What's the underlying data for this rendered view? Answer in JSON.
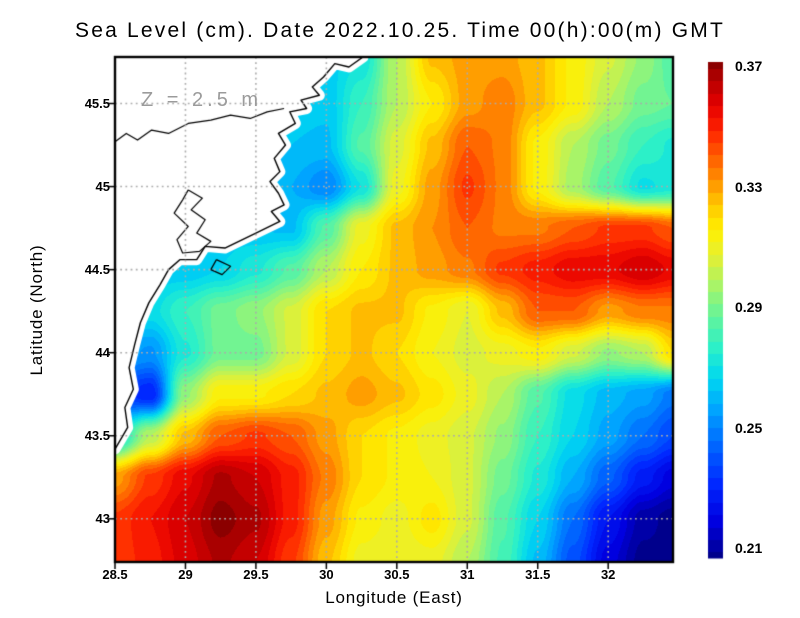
{
  "chart_data": {
    "type": "heatmap",
    "title": "Sea Level (cm). Date 2022.10.25. Time 00(h):00(m) GMT",
    "xlabel": "Longitude (East)",
    "ylabel": "Latitude (North)",
    "annotation": "Z = 2.5 m",
    "annotation_color": "#9b9b9b",
    "lon_range": [
      28.5,
      32.46
    ],
    "lat_range": [
      42.74,
      45.78
    ],
    "x_ticks": [
      "28.5",
      "29",
      "29.5",
      "30",
      "30.5",
      "31",
      "31.5",
      "32"
    ],
    "x_tick_values": [
      28.5,
      29,
      29.5,
      30,
      30.5,
      31,
      31.5,
      32
    ],
    "y_ticks": [
      "45.5",
      "45",
      "44.5",
      "44",
      "43.5",
      "43"
    ],
    "y_tick_values": [
      45.5,
      45,
      44.5,
      44,
      43.5,
      43
    ],
    "grid": {
      "style": "dotted",
      "color": "#ababab",
      "lon_lines": [
        29,
        29.5,
        30,
        30.5,
        31,
        31.5,
        32
      ],
      "lat_lines": [
        43,
        43.5,
        44,
        44.5,
        45,
        45.5
      ]
    },
    "colorbar": {
      "min": 0.21,
      "max": 0.37,
      "tick_labels": [
        "0.37",
        "0.33",
        "0.29",
        "0.25",
        "0.21"
      ],
      "tick_values": [
        0.37,
        0.33,
        0.29,
        0.25,
        0.21
      ]
    },
    "colormap": [
      [
        0.21,
        "#00008c"
      ],
      [
        0.222,
        "#0000e0"
      ],
      [
        0.234,
        "#0028ff"
      ],
      [
        0.246,
        "#0064ff"
      ],
      [
        0.258,
        "#00a4ff"
      ],
      [
        0.268,
        "#00d8f0"
      ],
      [
        0.278,
        "#2cf0c8"
      ],
      [
        0.288,
        "#64f49c"
      ],
      [
        0.298,
        "#a8f468"
      ],
      [
        0.308,
        "#e8f030"
      ],
      [
        0.316,
        "#fff000"
      ],
      [
        0.324,
        "#ffc800"
      ],
      [
        0.332,
        "#ff9000"
      ],
      [
        0.34,
        "#ff5a00"
      ],
      [
        0.348,
        "#ff2400"
      ],
      [
        0.356,
        "#e60000"
      ],
      [
        0.364,
        "#b80000"
      ],
      [
        0.37,
        "#8b0000"
      ]
    ],
    "grid_lons": [
      28.5,
      28.75,
      29.0,
      29.25,
      29.5,
      29.75,
      30.0,
      30.25,
      30.5,
      30.75,
      31.0,
      31.25,
      31.5,
      31.75,
      32.0,
      32.25,
      32.46
    ],
    "grid_lats": [
      45.78,
      45.5,
      45.25,
      45.0,
      44.75,
      44.5,
      44.25,
      44.0,
      43.75,
      43.5,
      43.25,
      43.0,
      42.74
    ],
    "values": [
      [
        0.27,
        0.27,
        0.27,
        0.27,
        0.27,
        0.266,
        0.266,
        0.272,
        0.3,
        0.325,
        0.33,
        0.33,
        0.325,
        0.315,
        0.305,
        0.295,
        0.285
      ],
      [
        0.27,
        0.27,
        0.27,
        0.27,
        0.268,
        0.266,
        0.265,
        0.28,
        0.3,
        0.316,
        0.33,
        0.335,
        0.325,
        0.315,
        0.3,
        0.29,
        0.288
      ],
      [
        0.268,
        0.268,
        0.268,
        0.268,
        0.266,
        0.264,
        0.263,
        0.285,
        0.306,
        0.325,
        0.34,
        0.335,
        0.315,
        0.3,
        0.29,
        0.28,
        0.275
      ],
      [
        0.266,
        0.266,
        0.266,
        0.266,
        0.264,
        0.26,
        0.252,
        0.272,
        0.31,
        0.33,
        0.345,
        0.335,
        0.315,
        0.298,
        0.285,
        0.271,
        0.274
      ],
      [
        0.265,
        0.265,
        0.265,
        0.265,
        0.264,
        0.263,
        0.285,
        0.31,
        0.325,
        0.332,
        0.34,
        0.335,
        0.335,
        0.34,
        0.345,
        0.345,
        0.34
      ],
      [
        0.265,
        0.265,
        0.265,
        0.268,
        0.275,
        0.285,
        0.3,
        0.316,
        0.325,
        0.33,
        0.335,
        0.345,
        0.35,
        0.355,
        0.355,
        0.36,
        0.355
      ],
      [
        0.268,
        0.27,
        0.28,
        0.29,
        0.295,
        0.305,
        0.32,
        0.325,
        0.325,
        0.315,
        0.308,
        0.325,
        0.34,
        0.34,
        0.33,
        0.335,
        0.335
      ],
      [
        0.26,
        0.255,
        0.275,
        0.29,
        0.29,
        0.305,
        0.32,
        0.325,
        0.32,
        0.312,
        0.306,
        0.31,
        0.315,
        0.305,
        0.295,
        0.3,
        0.32
      ],
      [
        0.24,
        0.232,
        0.295,
        0.315,
        0.315,
        0.32,
        0.325,
        0.33,
        0.325,
        0.318,
        0.31,
        0.3,
        0.285,
        0.27,
        0.262,
        0.258,
        0.25
      ],
      [
        0.27,
        0.3,
        0.325,
        0.34,
        0.345,
        0.34,
        0.33,
        0.32,
        0.315,
        0.31,
        0.305,
        0.295,
        0.28,
        0.268,
        0.258,
        0.248,
        0.24
      ],
      [
        0.33,
        0.345,
        0.355,
        0.365,
        0.36,
        0.35,
        0.335,
        0.32,
        0.315,
        0.312,
        0.305,
        0.29,
        0.275,
        0.26,
        0.245,
        0.23,
        0.222
      ],
      [
        0.345,
        0.352,
        0.36,
        0.37,
        0.365,
        0.35,
        0.33,
        0.315,
        0.31,
        0.318,
        0.305,
        0.285,
        0.268,
        0.248,
        0.228,
        0.214,
        0.21
      ],
      [
        0.345,
        0.35,
        0.358,
        0.365,
        0.36,
        0.345,
        0.325,
        0.31,
        0.308,
        0.31,
        0.3,
        0.283,
        0.263,
        0.242,
        0.222,
        0.21,
        0.21
      ]
    ],
    "map": {
      "land_fill": "#ffffff",
      "coast_color": "#000000",
      "coastline_polygon": [
        [
          30.26,
          45.78
        ],
        [
          30.16,
          45.72
        ],
        [
          30.06,
          45.74
        ],
        [
          29.98,
          45.66
        ],
        [
          29.9,
          45.6
        ],
        [
          29.95,
          45.55
        ],
        [
          29.82,
          45.52
        ],
        [
          29.86,
          45.47
        ],
        [
          29.74,
          45.45
        ],
        [
          29.78,
          45.38
        ],
        [
          29.66,
          45.32
        ],
        [
          29.71,
          45.25
        ],
        [
          29.63,
          45.17
        ],
        [
          29.67,
          45.09
        ],
        [
          29.6,
          45.03
        ],
        [
          29.66,
          44.96
        ],
        [
          29.7,
          44.89
        ],
        [
          29.61,
          44.85
        ],
        [
          29.67,
          44.79
        ],
        [
          29.5,
          44.72
        ],
        [
          29.28,
          44.63
        ],
        [
          29.14,
          44.64
        ],
        [
          29.08,
          44.56
        ],
        [
          28.96,
          44.56
        ],
        [
          28.88,
          44.5
        ],
        [
          28.82,
          44.41
        ],
        [
          28.74,
          44.3
        ],
        [
          28.68,
          44.18
        ],
        [
          28.64,
          44.05
        ],
        [
          28.6,
          43.91
        ],
        [
          28.63,
          43.78
        ],
        [
          28.57,
          43.67
        ],
        [
          28.59,
          43.55
        ],
        [
          28.5,
          43.42
        ],
        [
          28.5,
          45.78
        ]
      ],
      "inland_lines": [
        [
          [
            28.5,
            45.27
          ],
          [
            28.58,
            45.32
          ],
          [
            28.66,
            45.28
          ],
          [
            28.76,
            45.34
          ],
          [
            28.88,
            45.32
          ],
          [
            29.02,
            45.38
          ],
          [
            29.18,
            45.4
          ],
          [
            29.32,
            45.43
          ],
          [
            29.46,
            45.41
          ],
          [
            29.58,
            45.45
          ],
          [
            29.7,
            45.47
          ]
        ],
        [
          [
            29.02,
            44.98
          ],
          [
            29.12,
            44.93
          ],
          [
            29.04,
            44.86
          ],
          [
            29.14,
            44.8
          ],
          [
            29.08,
            44.72
          ],
          [
            29.18,
            44.67
          ],
          [
            29.1,
            44.61
          ],
          [
            28.98,
            44.6
          ],
          [
            28.94,
            44.68
          ],
          [
            29.02,
            44.76
          ],
          [
            28.92,
            44.84
          ],
          [
            28.98,
            44.92
          ],
          [
            29.02,
            44.98
          ]
        ],
        [
          [
            29.22,
            44.56
          ],
          [
            29.32,
            44.52
          ],
          [
            29.26,
            44.47
          ],
          [
            29.18,
            44.5
          ],
          [
            29.22,
            44.56
          ]
        ]
      ]
    }
  }
}
